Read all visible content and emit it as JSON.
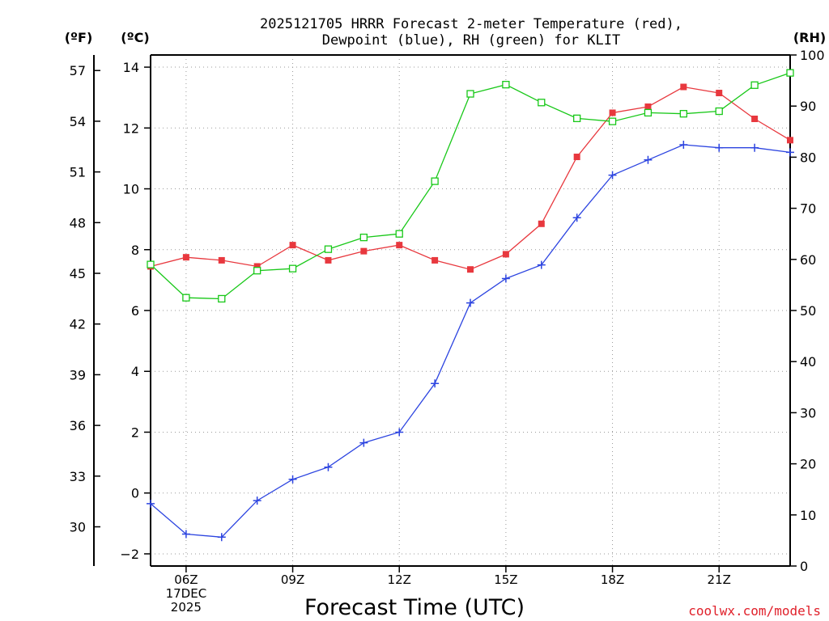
{
  "chart_data": {
    "type": "line",
    "title_line1": "2025121705 HRRR Forecast 2-meter Temperature (red),",
    "title_line2": "Dewpoint (blue), RH (green) for KLIT",
    "xlabel": "Forecast Time (UTC)",
    "credit": "coolwx.com/models",
    "axis_headers": {
      "fahrenheit": "(ºF)",
      "celsius": "(ºC)",
      "rh": "(RH)"
    },
    "x_hours": [
      5,
      6,
      7,
      8,
      9,
      10,
      11,
      12,
      13,
      14,
      15,
      16,
      17,
      18,
      19,
      20,
      21,
      22,
      23
    ],
    "x_tick_labels": [
      {
        "hour": 6,
        "lines": [
          "06Z",
          "17DEC",
          "2025"
        ]
      },
      {
        "hour": 9,
        "lines": [
          "09Z"
        ]
      },
      {
        "hour": 12,
        "lines": [
          "12Z"
        ]
      },
      {
        "hour": 15,
        "lines": [
          "15Z"
        ]
      },
      {
        "hour": 18,
        "lines": [
          "18Z"
        ]
      },
      {
        "hour": 21,
        "lines": [
          "21Z"
        ]
      }
    ],
    "xlim": [
      5,
      23
    ],
    "ylim_celsius": [
      -2.4,
      14.4
    ],
    "ylim_rh": [
      0,
      100
    ],
    "celsius_ticks": [
      "14",
      "12",
      "10",
      "8",
      "6",
      "4",
      "2",
      "0",
      "−2"
    ],
    "celsius_tick_values": [
      14,
      12,
      10,
      8,
      6,
      4,
      2,
      0,
      -2
    ],
    "fahrenheit_ticks": [
      "57",
      "54",
      "51",
      "48",
      "45",
      "42",
      "39",
      "36",
      "33",
      "30"
    ],
    "fahrenheit_tick_values": [
      57,
      54,
      51,
      48,
      45,
      42,
      39,
      36,
      33,
      30
    ],
    "rh_ticks": [
      "100",
      "90",
      "80",
      "70",
      "60",
      "50",
      "40",
      "30",
      "20",
      "10",
      "0"
    ],
    "rh_tick_values": [
      100,
      90,
      80,
      70,
      60,
      50,
      40,
      30,
      20,
      10,
      0
    ],
    "grid": true,
    "series": [
      {
        "name": "Temperature",
        "axis": "celsius",
        "marker": "filled-square",
        "color": "#e8383e",
        "values": [
          7.45,
          7.75,
          7.65,
          7.45,
          8.15,
          7.65,
          7.95,
          8.15,
          7.65,
          7.35,
          7.85,
          8.85,
          11.05,
          12.5,
          12.7,
          13.35,
          13.15,
          12.3,
          11.6
        ]
      },
      {
        "name": "Dewpoint",
        "axis": "celsius",
        "marker": "plus",
        "color": "#2c44e0",
        "values": [
          -0.35,
          -1.35,
          -1.45,
          -0.25,
          0.45,
          0.85,
          1.65,
          2.0,
          3.6,
          6.25,
          7.05,
          7.5,
          9.05,
          10.45,
          10.95,
          11.45,
          11.35,
          11.35,
          11.2
        ]
      },
      {
        "name": "RH",
        "axis": "rh",
        "marker": "open-square",
        "color": "#18c818",
        "values": [
          59,
          52.5,
          52.3,
          57.8,
          58.2,
          62,
          64.3,
          65,
          75.3,
          92.4,
          94.2,
          90.7,
          87.6,
          87,
          88.7,
          88.5,
          89,
          94.1,
          96.5
        ]
      }
    ]
  }
}
